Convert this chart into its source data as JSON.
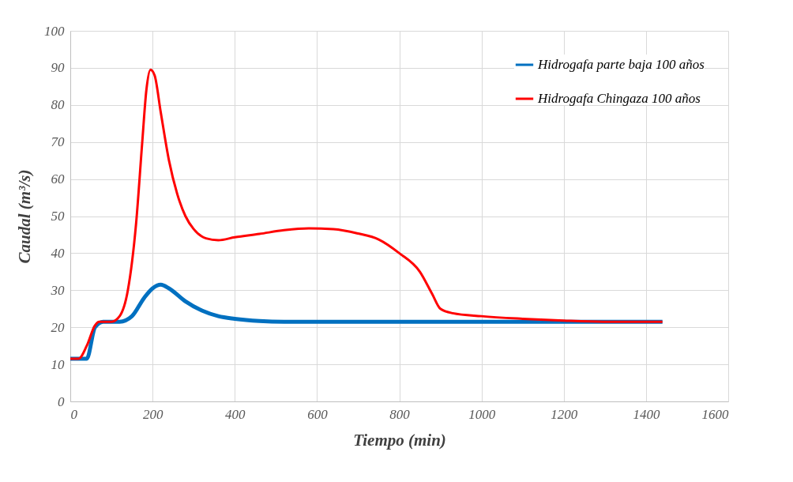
{
  "chart_data": {
    "type": "line",
    "xlabel": "Tiempo (min)",
    "ylabel": "Caudal (m³/s)",
    "xlim": [
      0,
      1600
    ],
    "xticks": [
      0,
      200,
      400,
      600,
      800,
      1000,
      1200,
      1400,
      1600
    ],
    "ylim": [
      0,
      100
    ],
    "yticks": [
      0,
      10,
      20,
      30,
      40,
      50,
      60,
      70,
      80,
      90,
      100
    ],
    "grid": true,
    "legend": "top right",
    "marker": "none",
    "line_style": "solid",
    "series": [
      {
        "name": "Hidrogafa parte baja 100 años",
        "color": "#0070c0",
        "x": [
          0,
          40,
          60,
          80,
          120,
          150,
          180,
          200,
          220,
          240,
          280,
          320,
          360,
          400,
          460,
          520,
          600,
          800,
          1000,
          1200,
          1440
        ],
        "values": [
          11.5,
          11.5,
          20,
          21.5,
          21.5,
          23,
          28,
          30.5,
          31.5,
          30.5,
          27,
          24.5,
          23,
          22.3,
          21.7,
          21.5,
          21.5,
          21.5,
          21.5,
          21.5,
          21.5
        ]
      },
      {
        "name": "Hidrogafa Chingaza 100 años",
        "color": "#ff0000",
        "x": [
          0,
          20,
          40,
          60,
          70,
          100,
          120,
          140,
          160,
          175,
          185,
          195,
          205,
          220,
          240,
          260,
          280,
          300,
          330,
          360,
          400,
          460,
          520,
          580,
          640,
          700,
          750,
          800,
          850,
          880,
          900,
          930,
          1000,
          1100,
          1200,
          1300,
          1440
        ],
        "values": [
          11.5,
          11.5,
          15,
          20.5,
          21.5,
          21.5,
          23,
          30,
          48,
          70,
          84,
          89.5,
          88,
          78,
          65,
          56,
          50,
          46.5,
          44,
          43.5,
          44.3,
          45.2,
          46.2,
          46.7,
          46.5,
          45.3,
          43.7,
          40,
          35,
          29,
          25,
          23.8,
          23,
          22.3,
          21.8,
          21.5,
          21.5
        ]
      }
    ]
  }
}
